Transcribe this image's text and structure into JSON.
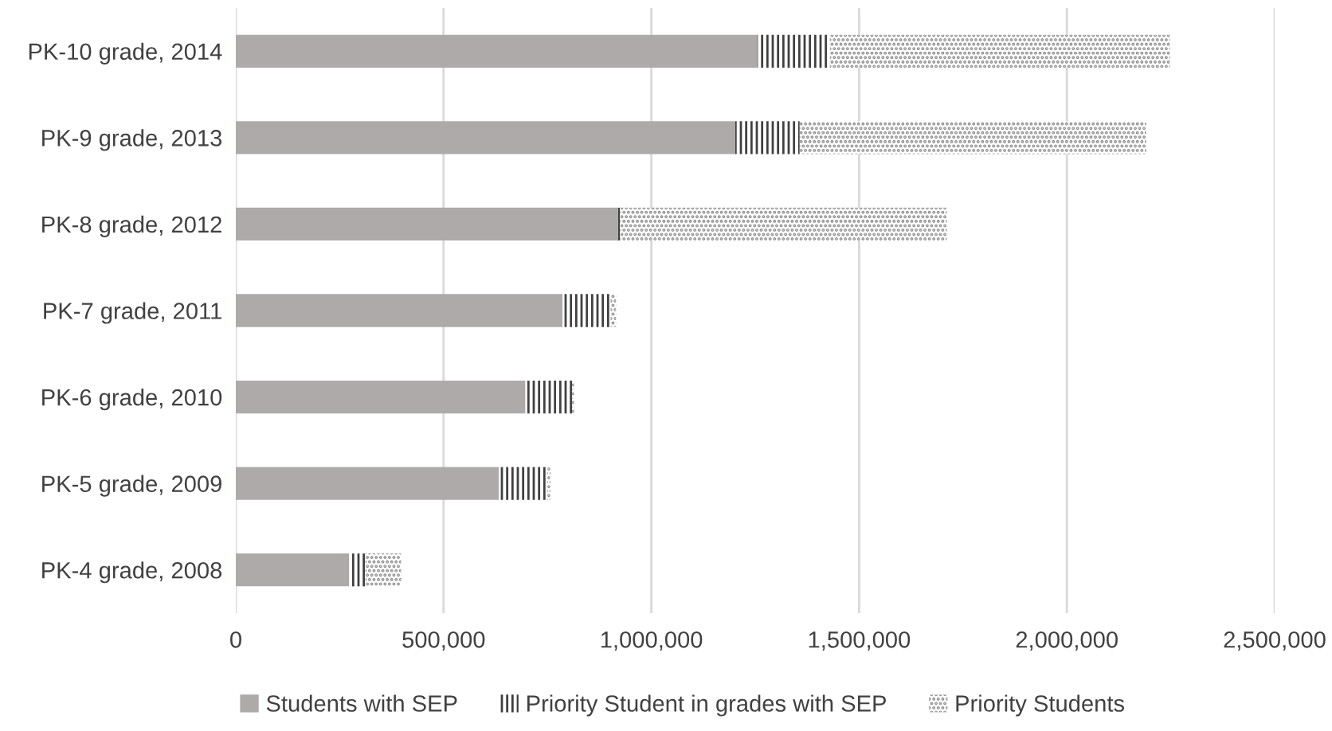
{
  "chart_data": {
    "type": "bar",
    "orientation": "horizontal",
    "stacked": true,
    "categories": [
      "PK-10 grade, 2014",
      "PK-9 grade, 2013",
      "PK-8 grade, 2012",
      "PK-7 grade, 2011",
      "PK-6 grade, 2010",
      "PK-5 grade, 2009",
      "PK-4 grade, 2008"
    ],
    "series": [
      {
        "name": "Students with SEP",
        "color": "#aeaaaa",
        "values": [
          1255000,
          1202000,
          920000,
          786000,
          697000,
          633000,
          272000
        ]
      },
      {
        "name": "Priority Student in grades with SEP",
        "color": "#404040",
        "values": [
          175000,
          155000,
          5000,
          116000,
          112000,
          117000,
          40000
        ]
      },
      {
        "name": "Priority Students",
        "color": "#8c8c8c",
        "values": [
          818000,
          834000,
          786000,
          13000,
          5000,
          7000,
          86000
        ]
      }
    ],
    "xlim": [
      0,
      2500000
    ],
    "xticks": [
      {
        "value": 0,
        "label": "0"
      },
      {
        "value": 500000,
        "label": "500,000"
      },
      {
        "value": 1000000,
        "label": "1,000,000"
      },
      {
        "value": 1500000,
        "label": "1,500,000"
      },
      {
        "value": 2000000,
        "label": "2,000,000"
      },
      {
        "value": 2500000,
        "label": "2,500,000"
      }
    ],
    "grid": "x",
    "legend": "bottom"
  }
}
